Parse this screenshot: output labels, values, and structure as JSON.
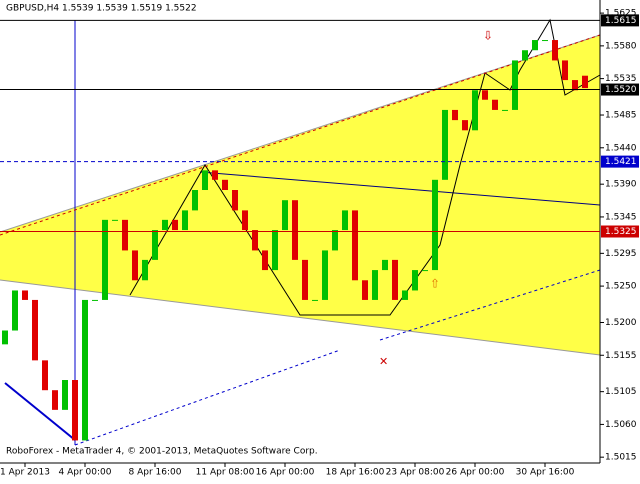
{
  "chart_data": {
    "type": "candlestick",
    "title": "GBPUSD,H4  1.5539 1.5539 1.5519 1.5522",
    "footer": "RoboForex - MetaTrader 4, © 2001-2013, MetaQuotes Software Corp.",
    "categories": [
      null,
      null,
      "1 Apr 2013",
      null,
      null,
      null,
      null,
      null,
      "4 Apr 00:00",
      null,
      null,
      null,
      null,
      null,
      null,
      "8 Apr 16:00",
      null,
      null,
      null,
      null,
      null,
      null,
      "11 Apr 08:00",
      null,
      null,
      null,
      null,
      null,
      "16 Apr 00:00",
      null,
      null,
      null,
      null,
      null,
      null,
      "18 Apr 16:00",
      null,
      null,
      null,
      null,
      null,
      "23 Apr 08:00",
      null,
      null,
      null,
      null,
      null,
      "26 Apr 00:00",
      null,
      null,
      null,
      null,
      null,
      null,
      "30 Apr 16:00",
      null,
      null,
      null,
      null
    ],
    "open": [
      1.517,
      1.5189,
      1.5244,
      1.5231,
      1.5148,
      1.5107,
      1.508,
      1.5121,
      1.5038,
      1.5231,
      1.5231,
      1.5341,
      1.5341,
      1.5299,
      1.5258,
      1.5286,
      1.5327,
      1.5341,
      1.5327,
      1.5354,
      1.5382,
      1.5409,
      1.5396,
      1.5382,
      1.5354,
      1.5327,
      1.5299,
      1.5272,
      1.5327,
      1.5368,
      1.5286,
      1.5231,
      1.5231,
      1.5299,
      1.5327,
      1.5354,
      1.5258,
      1.5231,
      1.5272,
      1.5286,
      1.5231,
      1.5244,
      1.5272,
      1.5272,
      1.5396,
      1.5492,
      1.5478,
      1.5464,
      1.5519,
      1.5506,
      1.5492,
      1.5492,
      1.556,
      1.5574,
      1.5588,
      1.5588,
      1.556,
      1.5533,
      1.5539
    ],
    "close": [
      1.5189,
      1.5244,
      1.5231,
      1.5148,
      1.5107,
      1.508,
      1.5121,
      1.5038,
      1.5231,
      1.5231,
      1.5341,
      1.5341,
      1.5299,
      1.5258,
      1.5286,
      1.5327,
      1.5341,
      1.5327,
      1.5354,
      1.5382,
      1.5409,
      1.5396,
      1.5382,
      1.5354,
      1.5327,
      1.5299,
      1.5272,
      1.5327,
      1.5368,
      1.5286,
      1.5231,
      1.5231,
      1.5299,
      1.5327,
      1.5354,
      1.5258,
      1.5231,
      1.5272,
      1.5286,
      1.5231,
      1.5244,
      1.5272,
      1.5272,
      1.5396,
      1.5492,
      1.5478,
      1.5464,
      1.5519,
      1.5506,
      1.5492,
      1.5492,
      1.556,
      1.5574,
      1.5588,
      1.5588,
      1.556,
      1.5533,
      1.5519,
      1.5522
    ],
    "up_color": "#00c000",
    "down_color": "#e00000",
    "ylim": [
      1.5007,
      1.5643
    ],
    "yticks": [
      1.5625,
      {
        "value": 1.558,
        "label": "1.5580"
      },
      1.5535,
      1.5485,
      {
        "value": 1.544,
        "label": "1.5440"
      },
      {
        "value": 1.539,
        "label": "1.5390"
      },
      1.5345,
      1.5295,
      {
        "value": 1.525,
        "label": "1.5250"
      },
      {
        "value": 1.52,
        "label": "1.5200"
      },
      1.5155,
      1.5105,
      {
        "value": 1.506,
        "label": "1.5060"
      },
      1.5015
    ],
    "levels": [
      {
        "value": 1.5615,
        "color": "#000000"
      },
      {
        "value": {
          "value": 1.552,
          "label": "1.5520"
        },
        "color": "#000000"
      },
      {
        "value": 1.5421,
        "color": "#0000cc"
      },
      {
        "value": 1.5325,
        "color": "#cc0000"
      }
    ]
  }
}
